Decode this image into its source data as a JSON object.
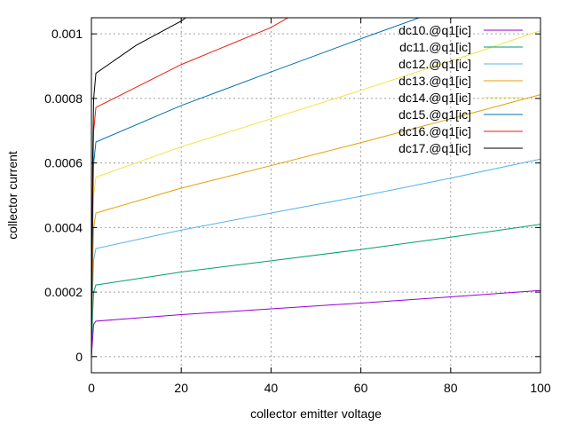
{
  "chart_data": {
    "type": "line",
    "title": "",
    "xlabel": "collector emitter voltage",
    "ylabel": "collector current",
    "xlim": [
      0,
      100
    ],
    "ylim": [
      -5e-05,
      0.00105
    ],
    "xticks": [
      0,
      20,
      40,
      60,
      80,
      100
    ],
    "xtick_labels": [
      "0",
      "20",
      "40",
      "60",
      "80",
      "100"
    ],
    "yticks": [
      0,
      0.0002,
      0.0004,
      0.0006,
      0.0008,
      0.001
    ],
    "ytick_labels": [
      "0",
      "0.0002",
      "0.0004",
      "0.0006",
      "0.0008",
      "0.001"
    ],
    "grid": true,
    "legend_position": "top-right",
    "series": [
      {
        "name": "dc10.@q1[ic]",
        "color": "#9400d3",
        "x": [
          0,
          0.3,
          0.5,
          1,
          20,
          40,
          60,
          80,
          100
        ],
        "y": [
          0,
          6e-05,
          0.0001,
          0.00011,
          0.00013,
          0.000148,
          0.000166,
          0.000185,
          0.000205
        ]
      },
      {
        "name": "dc11.@q1[ic]",
        "color": "#009e73",
        "x": [
          0,
          0.3,
          0.5,
          1,
          20,
          40,
          60,
          80,
          100
        ],
        "y": [
          0,
          0.00014,
          0.0002,
          0.000222,
          0.000262,
          0.000297,
          0.000332,
          0.00037,
          0.00041
        ]
      },
      {
        "name": "dc12.@q1[ic]",
        "color": "#56b4e9",
        "x": [
          0,
          0.3,
          0.5,
          1,
          20,
          40,
          60,
          80,
          100
        ],
        "y": [
          0,
          0.00022,
          0.0003,
          0.000335,
          0.000392,
          0.000445,
          0.000497,
          0.000553,
          0.000612
        ]
      },
      {
        "name": "dc13.@q1[ic]",
        "color": "#e69f00",
        "x": [
          0,
          0.3,
          0.5,
          1,
          20,
          40,
          60,
          80,
          100
        ],
        "y": [
          0,
          0.0003,
          0.0004,
          0.000445,
          0.000522,
          0.000592,
          0.000663,
          0.000737,
          0.000812
        ]
      },
      {
        "name": "dc14.@q1[ic]",
        "color": "#f0e442",
        "x": [
          0,
          0.3,
          0.5,
          1,
          20,
          40,
          60,
          80,
          100
        ],
        "y": [
          0,
          0.00038,
          0.0005,
          0.000556,
          0.00065,
          0.000737,
          0.000825,
          0.000916,
          0.00101
        ]
      },
      {
        "name": "dc15.@q1[ic]",
        "color": "#0072b2",
        "x": [
          0,
          0.3,
          0.5,
          1,
          20,
          40,
          60,
          75
        ],
        "y": [
          0,
          0.00046,
          0.0006,
          0.000665,
          0.000778,
          0.000882,
          0.000985,
          0.00106
        ]
      },
      {
        "name": "dc16.@q1[ic]",
        "color": "#e51e10",
        "x": [
          0,
          0.3,
          0.5,
          1,
          20,
          40,
          45
        ],
        "y": [
          0,
          0.00054,
          0.0007,
          0.000772,
          0.000905,
          0.00102,
          0.00106
        ]
      },
      {
        "name": "dc17.@q1[ic]",
        "color": "#000000",
        "x": [
          0,
          0.3,
          0.5,
          1,
          10,
          20,
          22
        ],
        "y": [
          0,
          0.00062,
          0.0008,
          0.000878,
          0.000965,
          0.00104,
          0.00106
        ]
      }
    ]
  }
}
